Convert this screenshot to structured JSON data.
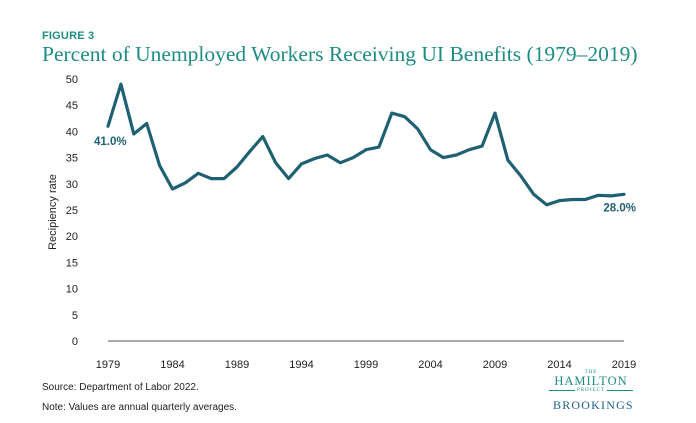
{
  "figure_label": "FIGURE 3",
  "footer": {
    "source": "Source: Department of Labor 2022.",
    "note": "Note: Values are annual quarterly averages."
  },
  "logos": {
    "hamilton_the": "THE",
    "hamilton_name": "HAMILTON",
    "hamilton_project": "PROJECT",
    "brookings": "BROOKINGS"
  },
  "colors": {
    "line": "#1f6172",
    "accent": "#1e8c84",
    "axis": "#555555"
  },
  "chart_data": {
    "type": "line",
    "title": "Percent of Unemployed Workers Receiving UI Benefits (1979–2019)",
    "xlabel": "",
    "ylabel": "Recipiency rate",
    "xlim": [
      1979,
      2019
    ],
    "ylim": [
      0,
      50
    ],
    "x_ticks": [
      1979,
      1984,
      1989,
      1994,
      1999,
      2004,
      2009,
      2014,
      2019
    ],
    "y_ticks": [
      0,
      5,
      10,
      15,
      20,
      25,
      30,
      35,
      40,
      45,
      50
    ],
    "grid": false,
    "series": [
      {
        "x": [
          1979,
          1980,
          1981,
          1982,
          1983,
          1984,
          1985,
          1986,
          1987,
          1988,
          1989,
          1990,
          1991,
          1992,
          1993,
          1994,
          1995,
          1996,
          1997,
          1998,
          1999,
          2000,
          2001,
          2002,
          2003,
          2004,
          2005,
          2006,
          2007,
          2008,
          2009,
          2010,
          2011,
          2012,
          2013,
          2014,
          2015,
          2016,
          2017,
          2018,
          2019
        ],
        "values": [
          41.0,
          49.0,
          39.5,
          41.5,
          33.5,
          29.0,
          30.2,
          32.0,
          31.0,
          31.0,
          33.2,
          36.2,
          39.0,
          34.0,
          31.0,
          33.8,
          34.8,
          35.5,
          34.0,
          35.0,
          36.5,
          37.0,
          43.5,
          42.8,
          40.5,
          36.5,
          35.0,
          35.5,
          36.5,
          37.2,
          43.5,
          34.5,
          31.5,
          28.0,
          26.0,
          26.8,
          27.0,
          27.0,
          27.8,
          27.7,
          28.0
        ]
      }
    ],
    "annotations": [
      {
        "label": "41.0%",
        "x": 1979,
        "y": 41.0
      },
      {
        "label": "28.0%",
        "x": 2019,
        "y": 28.0
      }
    ]
  }
}
